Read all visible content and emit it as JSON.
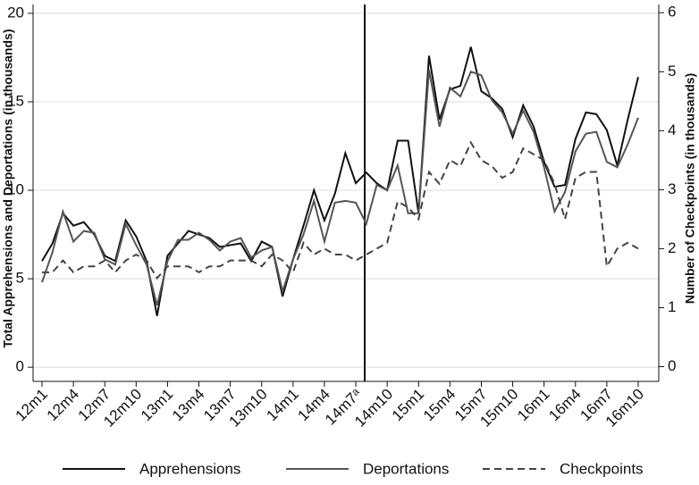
{
  "chart_data": {
    "type": "line",
    "categories": [
      "12m1",
      null,
      null,
      "12m4",
      null,
      null,
      "12m7",
      null,
      null,
      "12m10",
      null,
      null,
      "13m1",
      null,
      null,
      "13m4",
      null,
      null,
      "13m7",
      null,
      null,
      "13m10",
      null,
      null,
      "14m1",
      null,
      null,
      "14m4",
      null,
      null,
      "14m7ᵃ",
      null,
      null,
      "14m10",
      null,
      null,
      "15m1",
      null,
      null,
      "15m4",
      null,
      null,
      "15m7",
      null,
      null,
      "15m10",
      null,
      null,
      "16m1",
      null,
      null,
      "16m4",
      null,
      null,
      "16m7",
      null,
      null,
      "16m10"
    ],
    "series": [
      {
        "name": "Apprehensions",
        "color": "#111111",
        "dash": "none",
        "values": [
          6.0,
          7.0,
          8.7,
          8.0,
          8.2,
          7.5,
          6.3,
          6.0,
          8.3,
          7.4,
          6.0,
          2.9,
          6.3,
          7.0,
          7.7,
          7.5,
          7.3,
          6.8,
          6.9,
          7.0,
          6.0,
          7.1,
          6.8,
          4.0,
          6.1,
          8.0,
          10.0,
          8.3,
          9.8,
          12.1,
          10.4,
          11.0,
          10.4,
          10.0,
          12.8,
          12.8,
          8.7,
          17.6,
          14.0,
          15.7,
          15.9,
          18.1,
          15.6,
          15.2,
          14.6,
          13.0,
          14.8,
          13.6,
          11.6,
          10.2,
          10.3,
          12.9,
          14.4,
          14.3,
          13.4,
          11.4,
          14.0,
          16.4
        ]
      },
      {
        "name": "Deportations",
        "color": "#555555",
        "dash": "none",
        "values": [
          4.8,
          6.5,
          8.8,
          7.1,
          7.7,
          7.6,
          6.1,
          5.8,
          8.1,
          6.9,
          5.8,
          3.5,
          6.0,
          7.2,
          7.2,
          7.6,
          7.2,
          6.6,
          7.1,
          7.3,
          6.2,
          6.6,
          6.8,
          4.3,
          6.1,
          7.5,
          9.4,
          7.1,
          9.3,
          9.4,
          9.3,
          8.1,
          10.3,
          10.0,
          11.4,
          8.7,
          8.7,
          16.8,
          13.6,
          15.8,
          15.3,
          16.7,
          16.5,
          15.1,
          14.4,
          13.2,
          14.5,
          13.3,
          11.3,
          8.8,
          9.9,
          12.2,
          13.2,
          13.3,
          11.6,
          11.3,
          12.6,
          14.1
        ]
      },
      {
        "name": "Checkpoints",
        "color": "#444444",
        "dash": "8,5",
        "axis": "y2",
        "values": [
          1.6,
          1.6,
          1.8,
          1.6,
          1.7,
          1.7,
          1.8,
          1.6,
          1.8,
          1.9,
          1.8,
          1.5,
          1.7,
          1.7,
          1.7,
          1.6,
          1.7,
          1.7,
          1.8,
          1.8,
          1.8,
          1.7,
          1.9,
          1.8,
          1.6,
          2.1,
          1.9,
          2.0,
          1.9,
          1.9,
          1.8,
          1.9,
          2.0,
          2.1,
          2.8,
          2.7,
          2.5,
          3.3,
          3.1,
          3.5,
          3.4,
          3.8,
          3.5,
          3.4,
          3.2,
          3.3,
          3.7,
          3.6,
          3.5,
          3.1,
          2.5,
          3.2,
          3.3,
          3.3,
          1.7,
          2.0,
          2.1,
          2.0
        ]
      }
    ],
    "ylabel": "Total Apprehensions and Deportations (in thousands)",
    "y2label": "Number of Checkpoints (in thousands)",
    "ylim": [
      -0.8,
      20.5
    ],
    "yticks": [
      0,
      5,
      10,
      15,
      20
    ],
    "y2lim": [
      -0.25,
      6.14
    ],
    "y2ticks": [
      0,
      1,
      2,
      3,
      4,
      5,
      6
    ],
    "grid": true,
    "legend": "bottom",
    "vline_index": 30
  }
}
